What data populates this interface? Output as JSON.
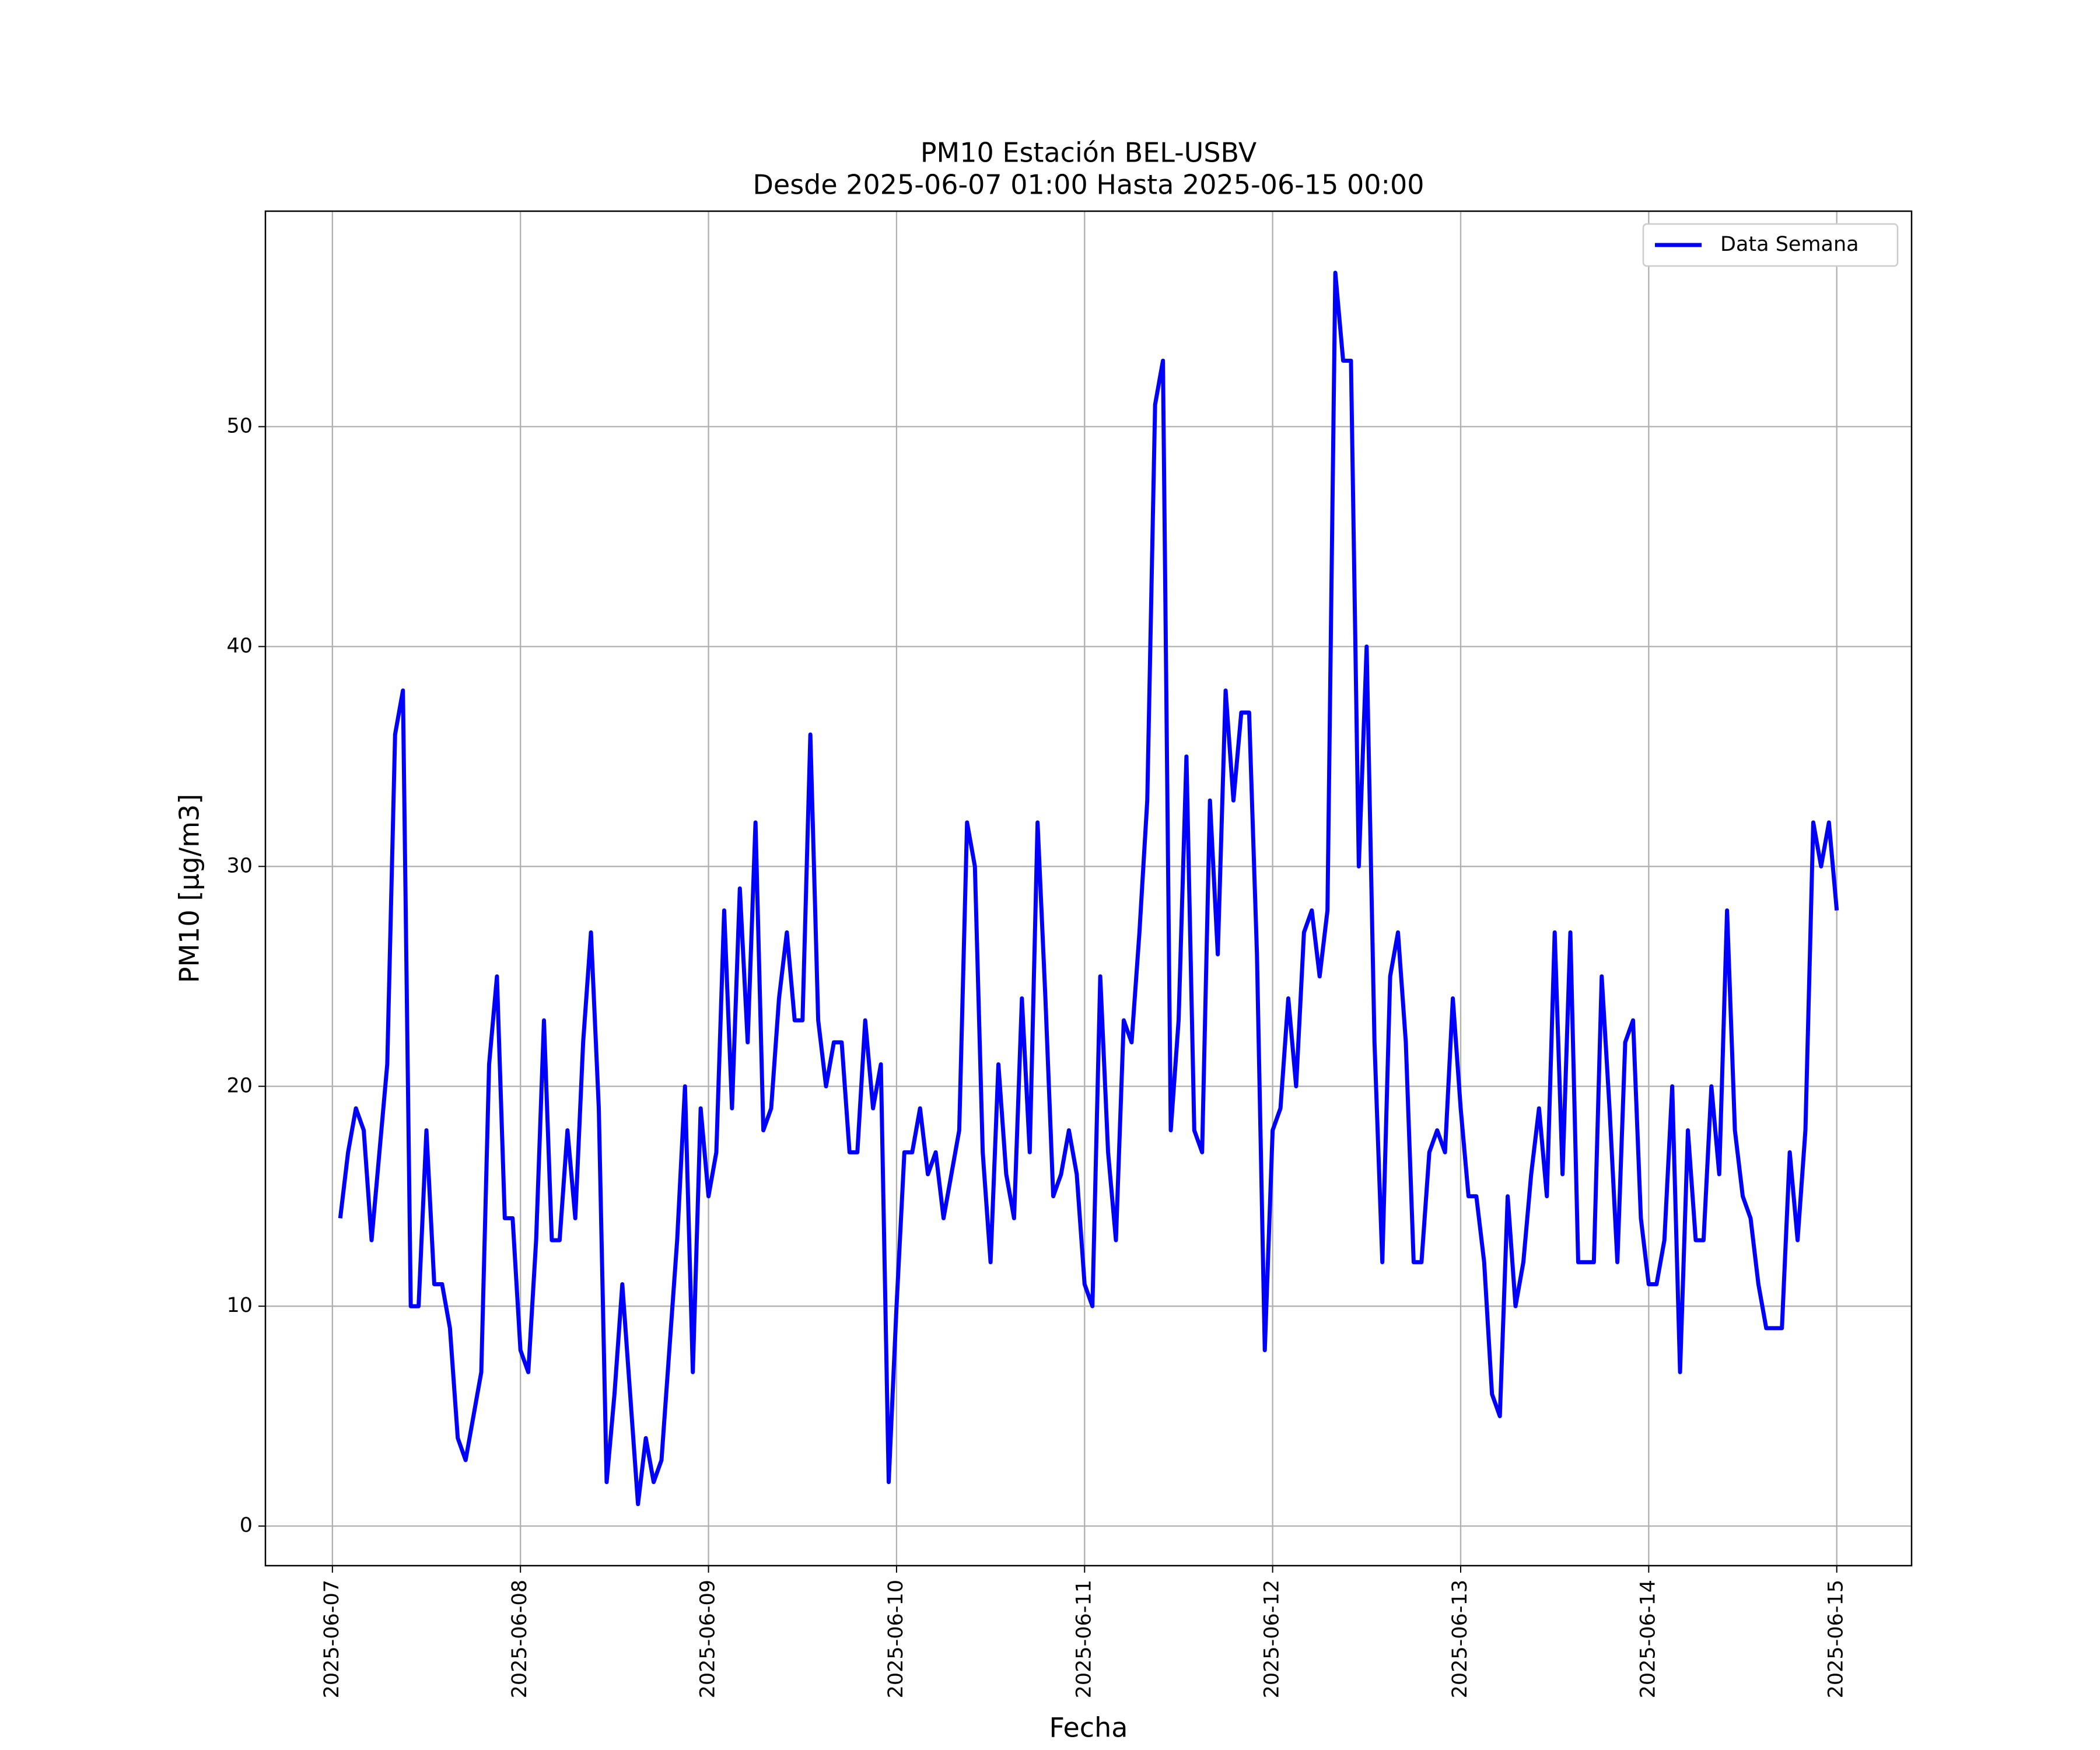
{
  "chart_data": {
    "type": "line",
    "title": "PM10 Estación BEL-USBV",
    "subtitle": "Desde 2025-06-07 01:00 Hasta 2025-06-15 00:00",
    "x_label": "Fecha",
    "y_label": "PM10 [μg/m3]",
    "x": [
      "2025-06-07 01:00",
      "2025-06-07 02:00",
      "2025-06-07 03:00",
      "2025-06-07 04:00",
      "2025-06-07 05:00",
      "2025-06-07 06:00",
      "2025-06-07 07:00",
      "2025-06-07 08:00",
      "2025-06-07 09:00",
      "2025-06-07 10:00",
      "2025-06-07 11:00",
      "2025-06-07 12:00",
      "2025-06-07 13:00",
      "2025-06-07 14:00",
      "2025-06-07 15:00",
      "2025-06-07 16:00",
      "2025-06-07 17:00",
      "2025-06-07 18:00",
      "2025-06-07 19:00",
      "2025-06-07 20:00",
      "2025-06-07 21:00",
      "2025-06-07 22:00",
      "2025-06-07 23:00",
      "2025-06-08 00:00",
      "2025-06-08 01:00",
      "2025-06-08 02:00",
      "2025-06-08 03:00",
      "2025-06-08 04:00",
      "2025-06-08 05:00",
      "2025-06-08 06:00",
      "2025-06-08 07:00",
      "2025-06-08 08:00",
      "2025-06-08 09:00",
      "2025-06-08 10:00",
      "2025-06-08 11:00",
      "2025-06-08 12:00",
      "2025-06-08 13:00",
      "2025-06-08 14:00",
      "2025-06-08 15:00",
      "2025-06-08 16:00",
      "2025-06-08 17:00",
      "2025-06-08 18:00",
      "2025-06-08 19:00",
      "2025-06-08 20:00",
      "2025-06-08 21:00",
      "2025-06-08 22:00",
      "2025-06-08 23:00",
      "2025-06-09 00:00",
      "2025-06-09 01:00",
      "2025-06-09 02:00",
      "2025-06-09 03:00",
      "2025-06-09 04:00",
      "2025-06-09 05:00",
      "2025-06-09 06:00",
      "2025-06-09 07:00",
      "2025-06-09 08:00",
      "2025-06-09 09:00",
      "2025-06-09 10:00",
      "2025-06-09 11:00",
      "2025-06-09 12:00",
      "2025-06-09 13:00",
      "2025-06-09 14:00",
      "2025-06-09 15:00",
      "2025-06-09 16:00",
      "2025-06-09 17:00",
      "2025-06-09 18:00",
      "2025-06-09 19:00",
      "2025-06-09 20:00",
      "2025-06-09 21:00",
      "2025-06-09 22:00",
      "2025-06-09 23:00",
      "2025-06-10 00:00",
      "2025-06-10 01:00",
      "2025-06-10 02:00",
      "2025-06-10 03:00",
      "2025-06-10 04:00",
      "2025-06-10 05:00",
      "2025-06-10 06:00",
      "2025-06-10 07:00",
      "2025-06-10 08:00",
      "2025-06-10 09:00",
      "2025-06-10 10:00",
      "2025-06-10 11:00",
      "2025-06-10 12:00",
      "2025-06-10 13:00",
      "2025-06-10 14:00",
      "2025-06-10 15:00",
      "2025-06-10 16:00",
      "2025-06-10 17:00",
      "2025-06-10 18:00",
      "2025-06-10 19:00",
      "2025-06-10 20:00",
      "2025-06-10 21:00",
      "2025-06-10 22:00",
      "2025-06-10 23:00",
      "2025-06-11 00:00",
      "2025-06-11 01:00",
      "2025-06-11 02:00",
      "2025-06-11 03:00",
      "2025-06-11 04:00",
      "2025-06-11 05:00",
      "2025-06-11 06:00",
      "2025-06-11 07:00",
      "2025-06-11 08:00",
      "2025-06-11 09:00",
      "2025-06-11 10:00",
      "2025-06-11 11:00",
      "2025-06-11 12:00",
      "2025-06-11 13:00",
      "2025-06-11 14:00",
      "2025-06-11 15:00",
      "2025-06-11 16:00",
      "2025-06-11 17:00",
      "2025-06-11 18:00",
      "2025-06-11 19:00",
      "2025-06-11 20:00",
      "2025-06-11 21:00",
      "2025-06-11 22:00",
      "2025-06-11 23:00",
      "2025-06-12 00:00",
      "2025-06-12 01:00",
      "2025-06-12 02:00",
      "2025-06-12 03:00",
      "2025-06-12 04:00",
      "2025-06-12 05:00",
      "2025-06-12 06:00",
      "2025-06-12 07:00",
      "2025-06-12 08:00",
      "2025-06-12 09:00",
      "2025-06-12 10:00",
      "2025-06-12 11:00",
      "2025-06-12 12:00",
      "2025-06-12 13:00",
      "2025-06-12 14:00",
      "2025-06-12 15:00",
      "2025-06-12 16:00",
      "2025-06-12 17:00",
      "2025-06-12 18:00",
      "2025-06-12 19:00",
      "2025-06-12 20:00",
      "2025-06-12 21:00",
      "2025-06-12 22:00",
      "2025-06-12 23:00",
      "2025-06-13 00:00",
      "2025-06-13 01:00",
      "2025-06-13 02:00",
      "2025-06-13 03:00",
      "2025-06-13 04:00",
      "2025-06-13 05:00",
      "2025-06-13 06:00",
      "2025-06-13 07:00",
      "2025-06-13 08:00",
      "2025-06-13 09:00",
      "2025-06-13 10:00",
      "2025-06-13 11:00",
      "2025-06-13 12:00",
      "2025-06-13 13:00",
      "2025-06-13 14:00",
      "2025-06-13 15:00",
      "2025-06-13 16:00",
      "2025-06-13 17:00",
      "2025-06-13 18:00",
      "2025-06-13 19:00",
      "2025-06-13 20:00",
      "2025-06-13 21:00",
      "2025-06-13 22:00",
      "2025-06-13 23:00",
      "2025-06-14 00:00",
      "2025-06-14 01:00",
      "2025-06-14 02:00",
      "2025-06-14 03:00",
      "2025-06-14 04:00",
      "2025-06-14 05:00",
      "2025-06-14 06:00",
      "2025-06-14 07:00",
      "2025-06-14 08:00",
      "2025-06-14 09:00",
      "2025-06-14 10:00",
      "2025-06-14 11:00",
      "2025-06-14 12:00",
      "2025-06-14 13:00",
      "2025-06-14 14:00",
      "2025-06-14 15:00",
      "2025-06-14 16:00",
      "2025-06-14 17:00",
      "2025-06-14 18:00",
      "2025-06-14 19:00",
      "2025-06-14 20:00",
      "2025-06-14 21:00",
      "2025-06-14 22:00",
      "2025-06-14 23:00",
      "2025-06-15 00:00"
    ],
    "series": [
      {
        "name": "Data Semana",
        "color": "#0000ff",
        "values": [
          14,
          17,
          19,
          18,
          13,
          17,
          21,
          36,
          38,
          10,
          10,
          18,
          11,
          11,
          9,
          4,
          3,
          5,
          7,
          21,
          25,
          14,
          14,
          8,
          7,
          13,
          23,
          13,
          13,
          18,
          14,
          22,
          27,
          19,
          2,
          6,
          11,
          6,
          1,
          4,
          2,
          3,
          8,
          13,
          20,
          7,
          19,
          15,
          17,
          28,
          19,
          29,
          22,
          32,
          18,
          19,
          24,
          27,
          23,
          23,
          36,
          23,
          20,
          22,
          22,
          17,
          17,
          23,
          19,
          21,
          2,
          10,
          17,
          17,
          19,
          16,
          17,
          14,
          16,
          18,
          32,
          30,
          17,
          12,
          21,
          16,
          14,
          24,
          17,
          32,
          24,
          15,
          16,
          18,
          16,
          11,
          10,
          25,
          17,
          13,
          23,
          22,
          27,
          33,
          51,
          53,
          18,
          23,
          35,
          18,
          17,
          33,
          26,
          38,
          33,
          37,
          37,
          26,
          8,
          18,
          19,
          24,
          20,
          27,
          28,
          25,
          28,
          57,
          53,
          53,
          30,
          40,
          22,
          12,
          25,
          27,
          22,
          12,
          12,
          17,
          18,
          17,
          24,
          19,
          15,
          15,
          12,
          6,
          5,
          15,
          10,
          12,
          16,
          19,
          15,
          27,
          16,
          27,
          12,
          12,
          12,
          25,
          19,
          12,
          22,
          23,
          14,
          11,
          11,
          13,
          20,
          7,
          18,
          13,
          13,
          20,
          16,
          28,
          18,
          15,
          14,
          11,
          9,
          9,
          9,
          17,
          13,
          18,
          32,
          30,
          32,
          28
        ]
      }
    ],
    "xlim": [
      "2025-06-06 15:27",
      "2025-06-15 09:33"
    ],
    "xticks": [
      "2025-06-07",
      "2025-06-08",
      "2025-06-09",
      "2025-06-10",
      "2025-06-11",
      "2025-06-12",
      "2025-06-13",
      "2025-06-14",
      "2025-06-15"
    ],
    "ylim": [
      -1.8,
      59.8
    ],
    "yticks": [
      0,
      10,
      20,
      30,
      40,
      50
    ],
    "grid": true,
    "legend": "upper right"
  }
}
